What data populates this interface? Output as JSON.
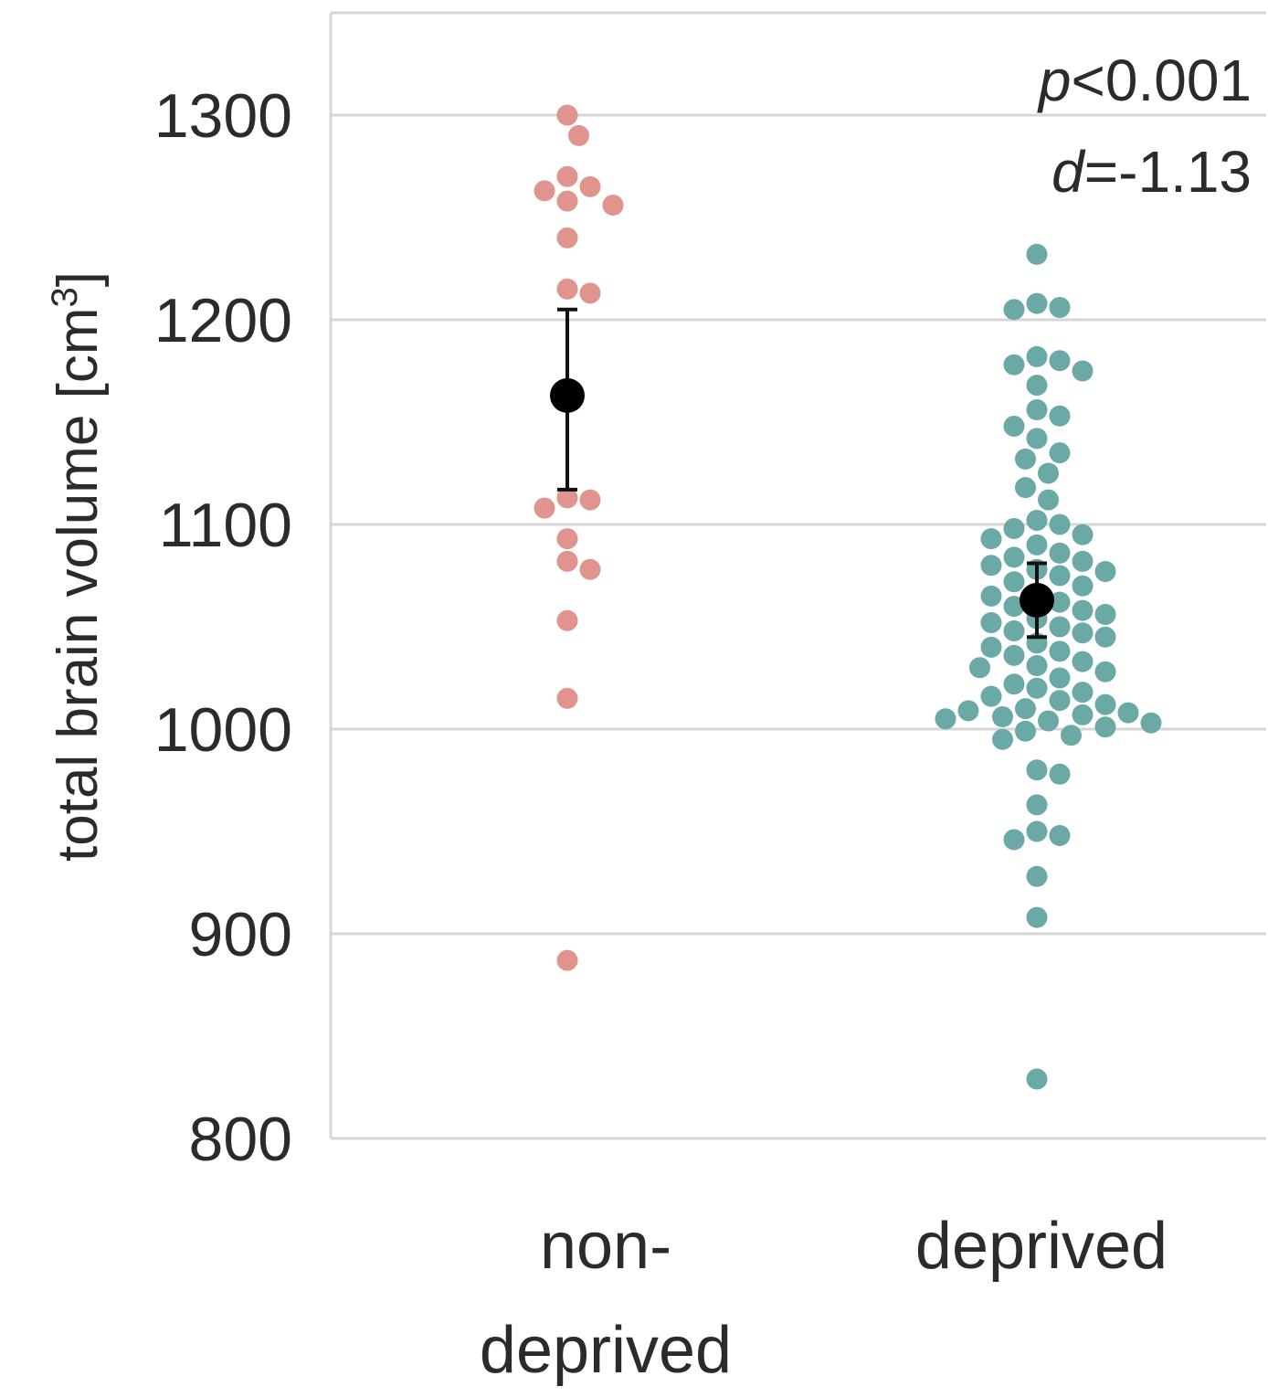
{
  "chart_data": {
    "type": "scatter",
    "ylabel": "total brain volume [cm",
    "ylabel_superscript": "3",
    "ylabel_close": "]",
    "ylim": [
      800,
      1350
    ],
    "yticks": [
      800,
      900,
      1000,
      1100,
      1200,
      1300
    ],
    "grid": true,
    "categories": [
      {
        "label_lines": [
          "non-",
          "deprived"
        ]
      },
      {
        "label_lines": [
          "deprived"
        ]
      }
    ],
    "series": [
      {
        "color": "#e0948d",
        "values": [
          1300,
          1290,
          1270,
          1265,
          1263,
          1258,
          1256,
          1240,
          1215,
          1213,
          1113,
          1112,
          1108,
          1093,
          1082,
          1078,
          1053,
          1015,
          887
        ],
        "mean": 1163,
        "ci_low": 1117,
        "ci_high": 1205
      },
      {
        "color": "#6aa9a6",
        "values": [
          1232,
          1208,
          1206,
          1205,
          1182,
          1180,
          1178,
          1175,
          1168,
          1156,
          1153,
          1148,
          1142,
          1135,
          1132,
          1125,
          1118,
          1112,
          1102,
          1100,
          1098,
          1095,
          1093,
          1090,
          1086,
          1084,
          1082,
          1080,
          1078,
          1077,
          1075,
          1072,
          1070,
          1066,
          1065,
          1062,
          1060,
          1058,
          1056,
          1054,
          1052,
          1050,
          1048,
          1047,
          1045,
          1042,
          1040,
          1038,
          1036,
          1033,
          1031,
          1030,
          1028,
          1025,
          1022,
          1020,
          1018,
          1016,
          1014,
          1012,
          1010,
          1009,
          1008,
          1007,
          1006,
          1005,
          1004,
          1003,
          1001,
          999,
          997,
          995,
          980,
          978,
          963,
          950,
          948,
          946,
          928,
          908,
          829
        ],
        "mean": 1063,
        "ci_low": 1045,
        "ci_high": 1081
      }
    ],
    "annotations": {
      "p_symbol": "p",
      "p_rest": "<0.001",
      "d_symbol": "d",
      "d_rest": "=-1.13"
    }
  }
}
